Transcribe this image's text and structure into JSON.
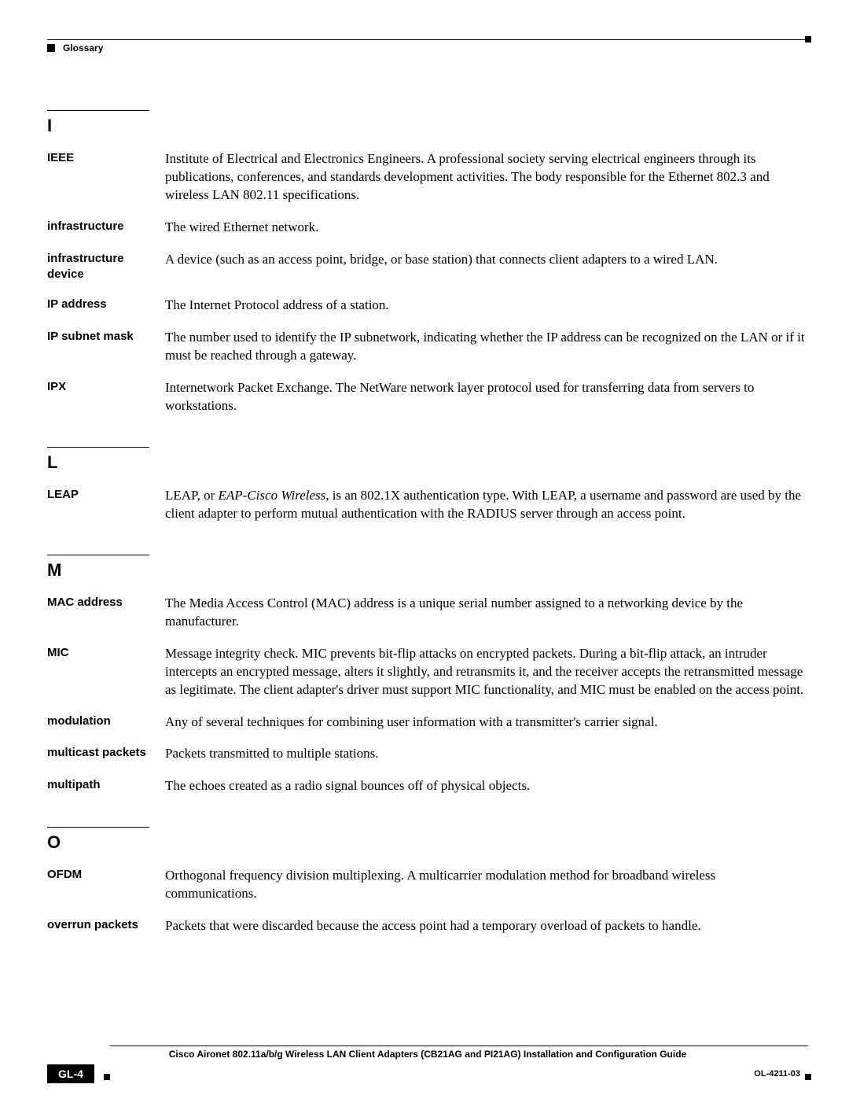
{
  "header": {
    "label": "Glossary"
  },
  "sections": [
    {
      "letter": "I",
      "entries": [
        {
          "term": "IEEE",
          "def": "Institute of Electrical and Electronics Engineers. A professional society serving electrical engineers through its publications, conferences, and standards development activities. The body responsible for the Ethernet 802.3 and wireless LAN 802.11 specifications."
        },
        {
          "term": "infrastructure",
          "def": "The wired Ethernet network."
        },
        {
          "term": "infrastructure device",
          "def": "A device (such as an access point, bridge, or base station) that connects client adapters to a wired LAN."
        },
        {
          "term": "IP address",
          "def": "The Internet Protocol address of a station."
        },
        {
          "term": "IP subnet mask",
          "def": "The number used to identify the IP subnetwork, indicating whether the IP address can be recognized on the LAN or if it must be reached through a gateway."
        },
        {
          "term": "IPX",
          "def": "Internetwork Packet Exchange. The NetWare network layer protocol used for transferring data from servers to workstations."
        }
      ]
    },
    {
      "letter": "L",
      "entries": [
        {
          "term": "LEAP",
          "def_pre": "LEAP, or ",
          "def_em": "EAP-Cisco Wireless",
          "def_post": ", is an 802.1X authentication type. With LEAP, a username and password are used by the client adapter to perform mutual authentication with the RADIUS server through an access point."
        }
      ]
    },
    {
      "letter": "M",
      "entries": [
        {
          "term": "MAC address",
          "def": "The Media Access Control (MAC) address is a unique serial number assigned to a networking device by the manufacturer."
        },
        {
          "term": "MIC",
          "def": "Message integrity check. MIC prevents bit-flip attacks on encrypted packets. During a bit-flip attack, an intruder intercepts an encrypted message, alters it slightly, and retransmits it, and the receiver accepts the retransmitted message as legitimate. The client adapter's driver must support MIC functionality, and MIC must be enabled on the access point."
        },
        {
          "term": "modulation",
          "def": "Any of several techniques for combining user information with a transmitter's carrier signal."
        },
        {
          "term": "multicast packets",
          "def": "Packets transmitted to multiple stations."
        },
        {
          "term": "multipath",
          "def": "The echoes created as a radio signal bounces off of physical objects."
        }
      ]
    },
    {
      "letter": "O",
      "entries": [
        {
          "term": "OFDM",
          "def": "Orthogonal frequency division multiplexing. A multicarrier modulation method for broadband wireless communications."
        },
        {
          "term": "overrun packets",
          "def": "Packets that were discarded because the access point had a temporary overload of packets to handle."
        }
      ]
    }
  ],
  "footer": {
    "title": "Cisco Aironet 802.11a/b/g Wireless LAN Client Adapters (CB21AG and PI21AG) Installation and Configuration Guide",
    "page": "GL-4",
    "docid": "OL-4211-03"
  }
}
